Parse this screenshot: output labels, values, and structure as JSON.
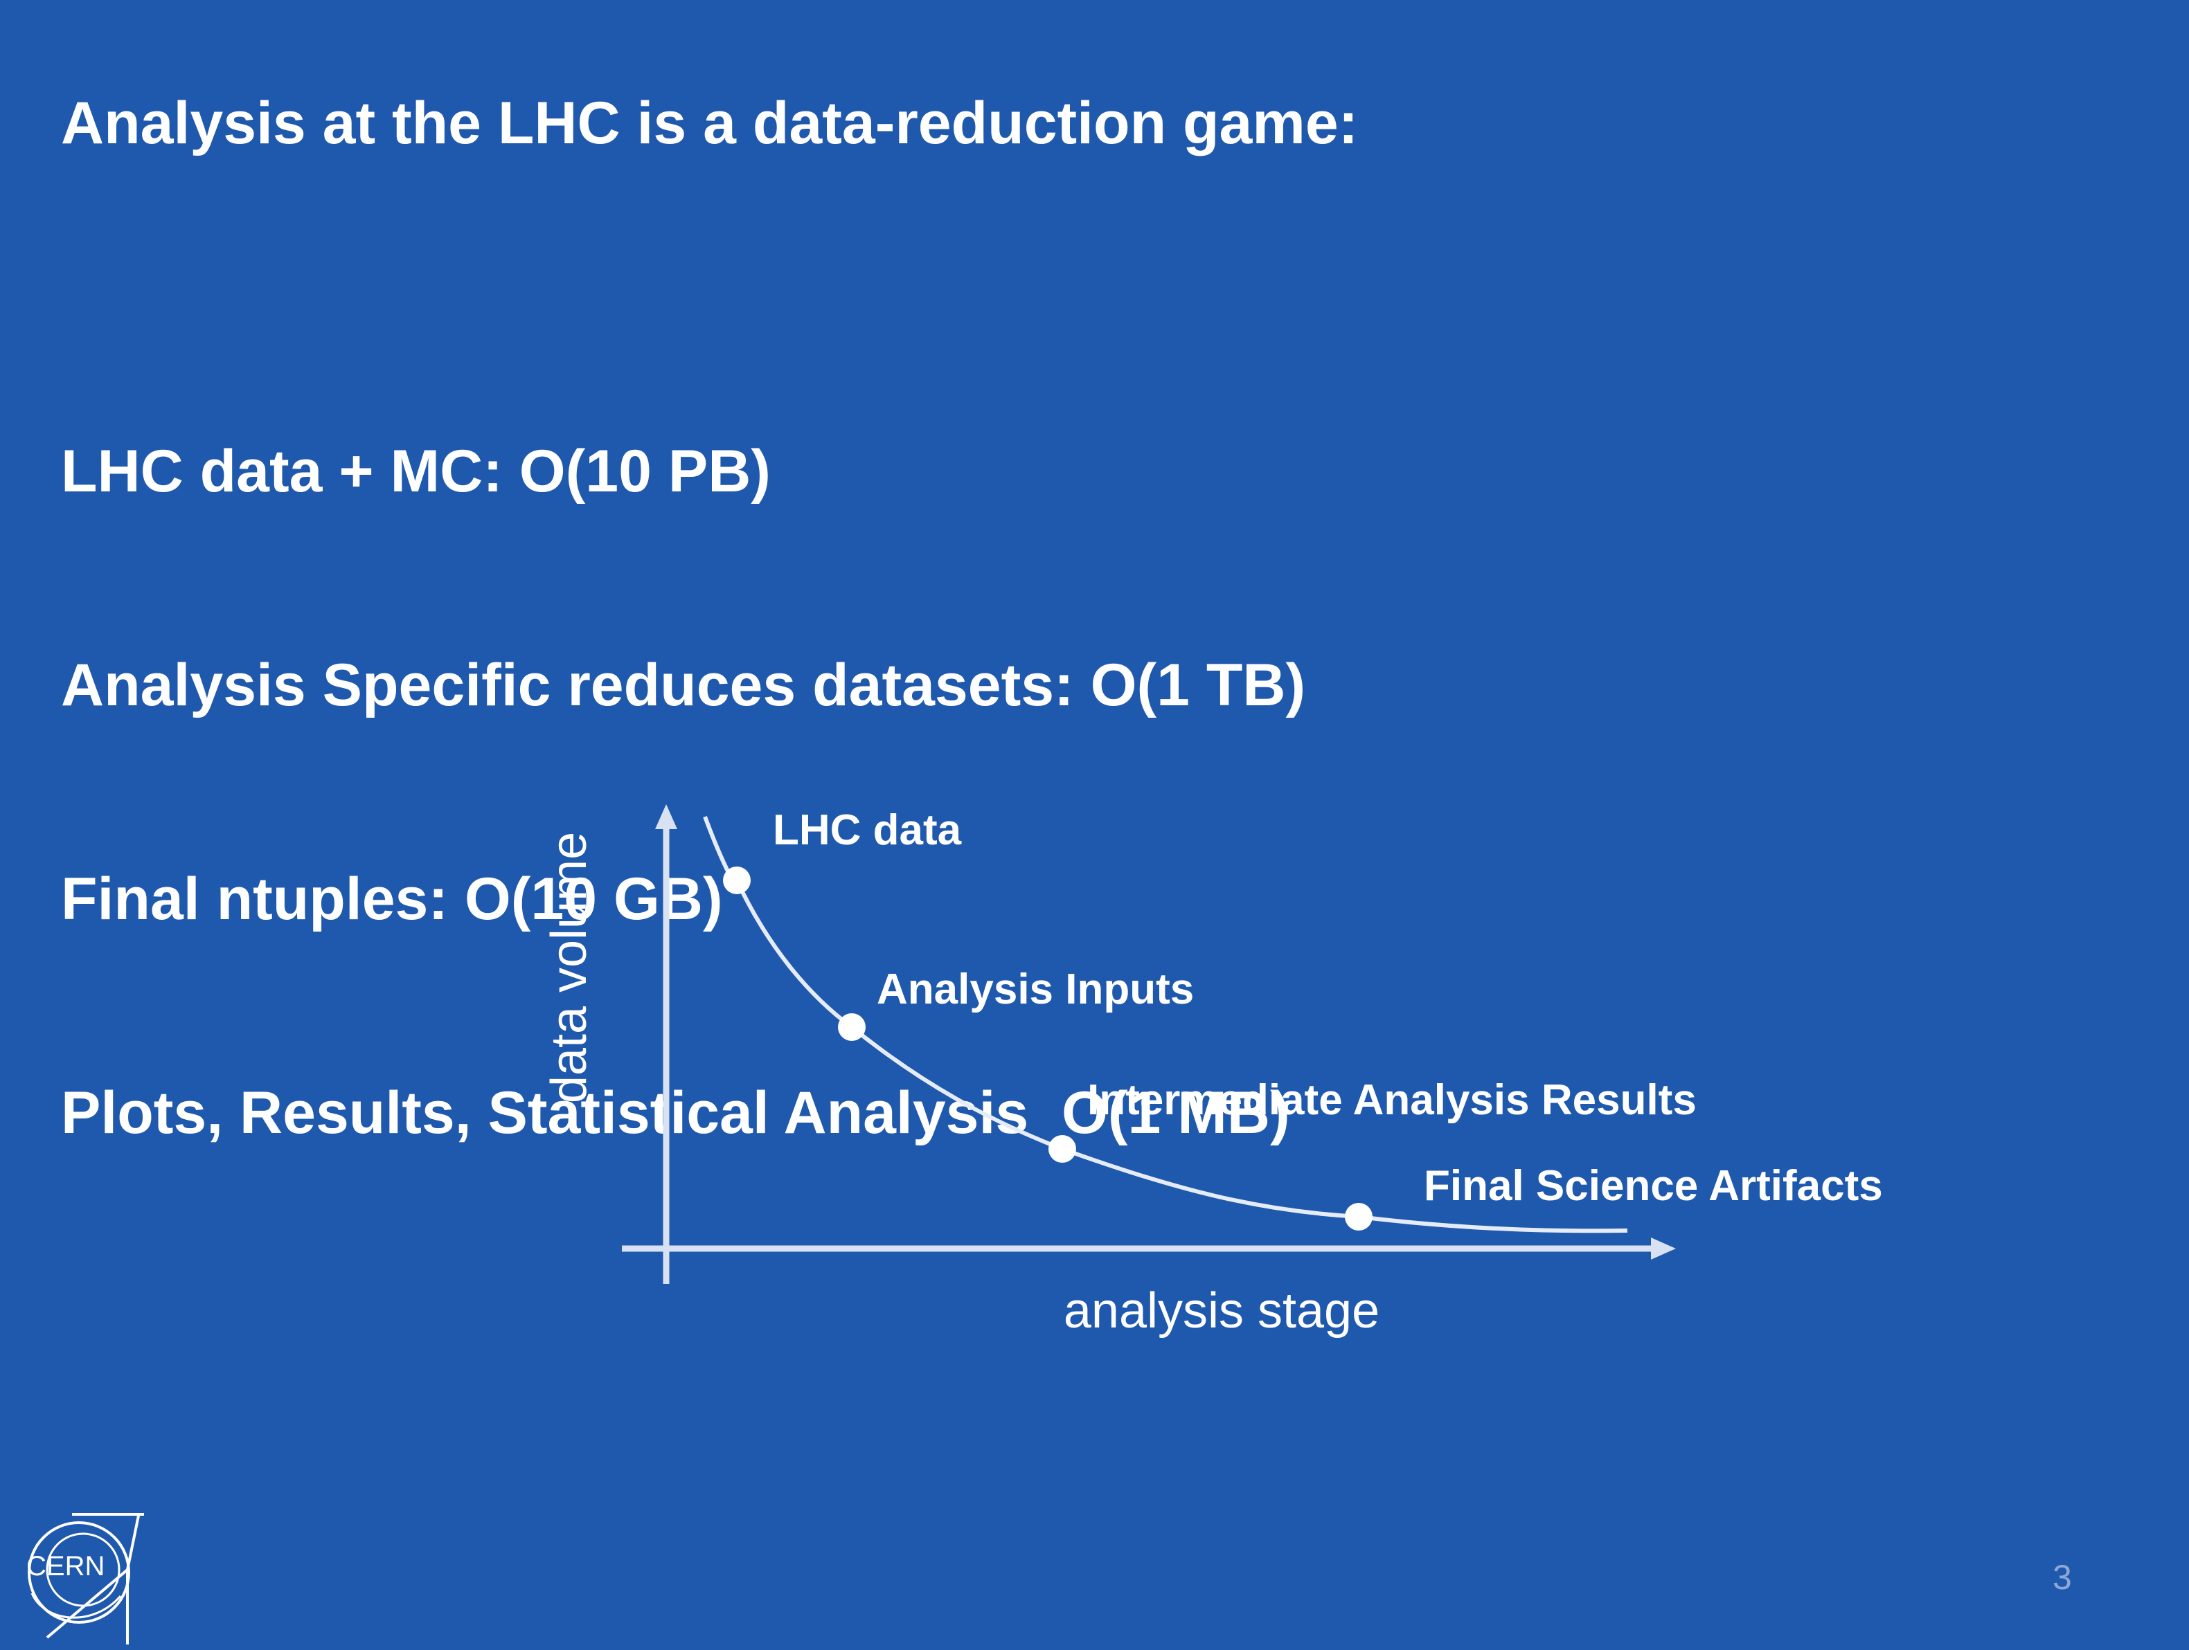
{
  "slide": {
    "title": "Analysis at the LHC is a data-reduction game:",
    "lines": [
      "LHC data + MC: O(10 PB)",
      "Analysis Specific reduces datasets: O(1 TB)",
      "Final ntuples: O(10 GB)",
      "Plots, Results, Statistical Analysis  O(1 MB)"
    ],
    "page_number": "3",
    "logo_text": "CERN"
  },
  "diagram": {
    "ylabel": "data volume",
    "xlabel": "analysis stage",
    "points": [
      {
        "label": "LHC data"
      },
      {
        "label": "Analysis Inputs"
      },
      {
        "label": "Intermediate Analysis Results"
      },
      {
        "label": "Final Science Artifacts"
      }
    ]
  },
  "colors": {
    "background": "#1f59ad",
    "foreground": "#ffffff",
    "axis": "#d9e2f2",
    "page_number": "#8ea8d6"
  }
}
